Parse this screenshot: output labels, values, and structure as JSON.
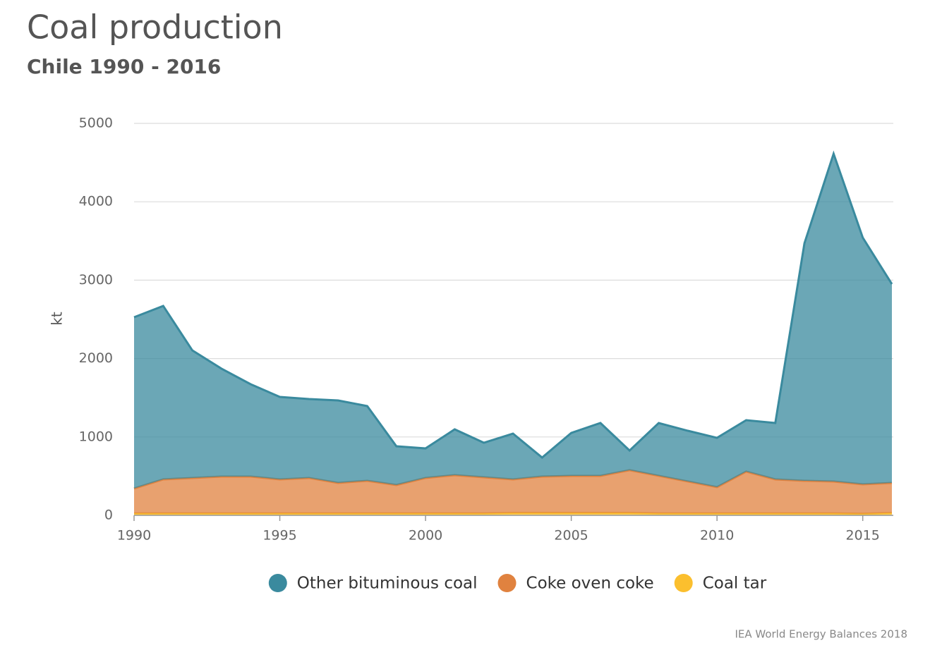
{
  "chart_data": {
    "type": "area",
    "stacked": true,
    "title": "Coal production",
    "subtitle": "Chile 1990 - 2016",
    "y_label": "kt",
    "source": "IEA World Energy Balances 2018",
    "x": [
      1990,
      1991,
      1992,
      1993,
      1994,
      1995,
      1996,
      1997,
      1998,
      1999,
      2000,
      2001,
      2002,
      2003,
      2004,
      2005,
      2006,
      2007,
      2008,
      2009,
      2010,
      2011,
      2012,
      2013,
      2014,
      2015,
      2016
    ],
    "series": [
      {
        "name": "Other bituminous coal",
        "color": "#3a8a9e",
        "values": [
          2185,
          2212,
          1627,
          1376,
          1178,
          1052,
          1007,
          1052,
          953,
          494,
          377,
          584,
          440,
          584,
          242,
          548,
          674,
          251,
          674,
          647,
          629,
          656,
          719,
          3030,
          4181,
          3147,
          2536
        ]
      },
      {
        "name": "Coke oven coke",
        "color": "#e0823f",
        "values": [
          317,
          434,
          452,
          470,
          470,
          434,
          452,
          389,
          416,
          362,
          452,
          488,
          461,
          429,
          465,
          474,
          474,
          546,
          479,
          407,
          335,
          533,
          434,
          416,
          407,
          376,
          384
        ]
      },
      {
        "name": "Coal tar",
        "color": "#fbbf2e",
        "values": [
          25,
          25,
          25,
          25,
          25,
          25,
          25,
          25,
          25,
          25,
          25,
          25,
          25,
          30,
          30,
          30,
          30,
          30,
          25,
          25,
          25,
          25,
          25,
          25,
          25,
          20,
          30
        ]
      }
    ],
    "xlim": [
      1990,
      2016
    ],
    "xticks": [
      1990,
      1995,
      2000,
      2005,
      2010,
      2015
    ],
    "ylim": [
      0,
      5000
    ],
    "yticks": [
      0,
      1000,
      2000,
      3000,
      4000,
      5000
    ],
    "grid": true
  }
}
